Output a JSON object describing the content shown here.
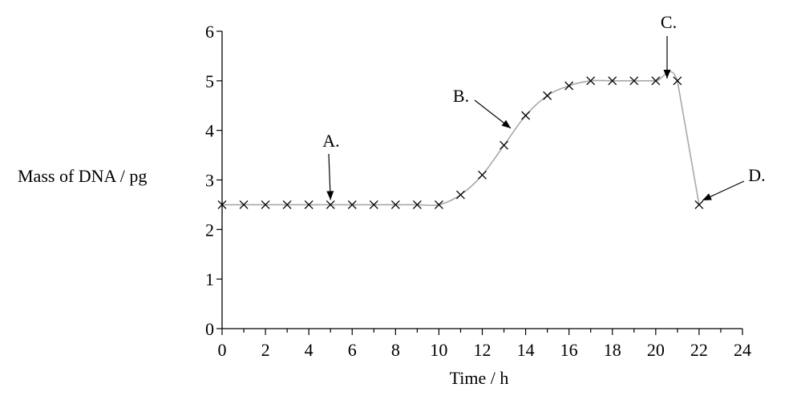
{
  "chart_data": {
    "type": "line",
    "xlabel": "Time / h",
    "ylabel": "Mass of DNA / pg",
    "xlim": [
      0,
      24
    ],
    "ylim": [
      0,
      6
    ],
    "xticks": [
      "0",
      "2",
      "4",
      "6",
      "8",
      "10",
      "12",
      "14",
      "16",
      "18",
      "20",
      "22",
      "24"
    ],
    "yticks": [
      "0",
      "1",
      "2",
      "3",
      "4",
      "5",
      "6"
    ],
    "grid": false,
    "series": [
      {
        "x": [
          0,
          1,
          2,
          3,
          4,
          5,
          6,
          7,
          8,
          9,
          10,
          11,
          12,
          13,
          14,
          15,
          16,
          17,
          18,
          19,
          20,
          21,
          22
        ],
        "y": [
          2.5,
          2.5,
          2.5,
          2.5,
          2.5,
          2.5,
          2.5,
          2.5,
          2.5,
          2.5,
          2.5,
          2.7,
          3.1,
          3.7,
          4.3,
          4.7,
          4.9,
          5.0,
          5.0,
          5.0,
          5.0,
          5.0,
          2.5
        ],
        "marker": "x",
        "line_color": "#a8a8a8",
        "marker_color": "#000000"
      }
    ],
    "annotations": [
      {
        "label": "A.",
        "point_x": 5,
        "point_y": 2.5
      },
      {
        "label": "B.",
        "point_x": 13.3,
        "point_y": 4.0
      },
      {
        "label": "C.",
        "point_x": 20.5,
        "point_y": 5.0
      },
      {
        "label": "D.",
        "point_x": 22,
        "point_y": 2.5
      }
    ]
  }
}
